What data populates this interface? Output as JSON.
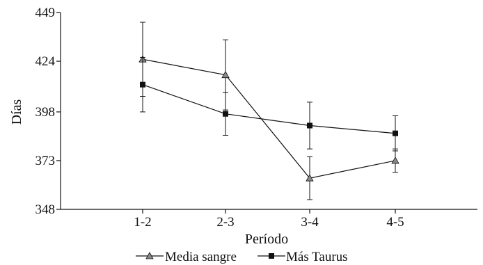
{
  "chart_data": {
    "type": "line",
    "title": "",
    "xlabel": "Período",
    "ylabel": "Días",
    "categories": [
      "1-2",
      "2-3",
      "3-4",
      "4-5"
    ],
    "ylim": [
      348,
      449
    ],
    "yticks": [
      "348",
      "373",
      "398",
      "424",
      "449"
    ],
    "grid": false,
    "legend_position": "bottom",
    "series": [
      {
        "name": "Media sangre",
        "marker": "triangle",
        "color": "#888888",
        "values": [
          425,
          417,
          364,
          373
        ],
        "error": [
          19,
          18,
          11,
          6
        ]
      },
      {
        "name": "Más Taurus",
        "marker": "square",
        "color": "#111111",
        "values": [
          412,
          397,
          391,
          387
        ],
        "error": [
          14,
          11,
          12,
          9
        ]
      }
    ]
  }
}
